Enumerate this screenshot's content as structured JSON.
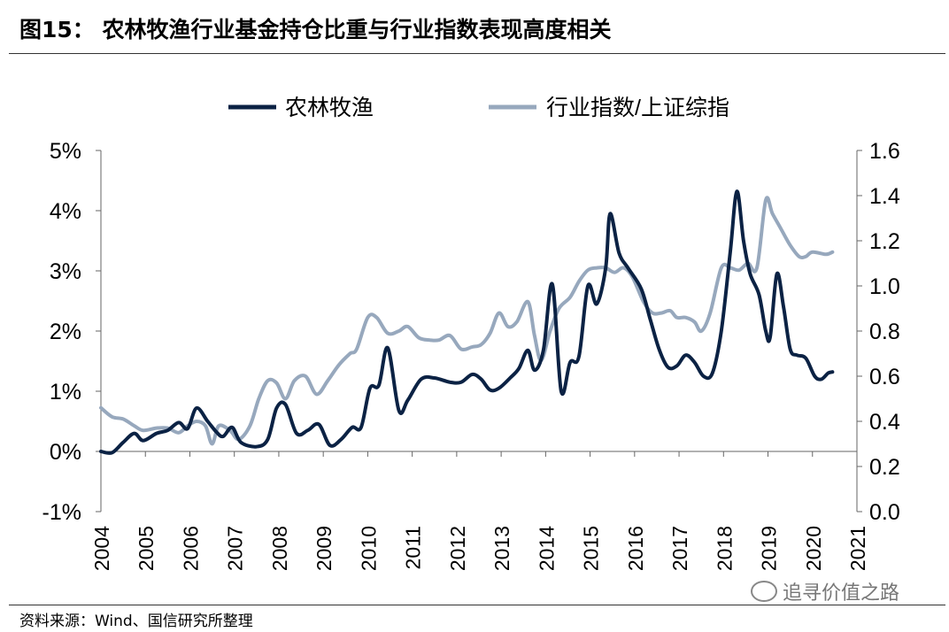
{
  "title": "图15：  农林牧渔行业基金持仓比重与行业指数表现高度相关",
  "source": "资料来源：Wind、国信研究所整理",
  "watermark": "追寻价值之路",
  "chart_data": {
    "type": "line",
    "x_ticks": [
      "2004",
      "2005",
      "2006",
      "2007",
      "2008",
      "2009",
      "2010",
      "2011",
      "2012",
      "2013",
      "2014",
      "2015",
      "2016",
      "2017",
      "2018",
      "2019",
      "2020",
      "2021"
    ],
    "y_left": {
      "min": -1,
      "max": 5,
      "ticks": [
        -1,
        0,
        1,
        2,
        3,
        4,
        5
      ],
      "labels": [
        "-1%",
        "0%",
        "1%",
        "2%",
        "3%",
        "4%",
        "5%"
      ]
    },
    "y_right": {
      "min": 0,
      "max": 1.6,
      "ticks": [
        0,
        0.2,
        0.4,
        0.6,
        0.8,
        1.0,
        1.2,
        1.4,
        1.6
      ],
      "labels": [
        "0.0",
        "0.2",
        "0.4",
        "0.6",
        "0.8",
        "1.0",
        "1.2",
        "1.4",
        "1.6"
      ]
    },
    "legend": {
      "placement": "top-center"
    },
    "series": [
      {
        "name": "农林牧渔",
        "axis": "left",
        "color": "#0b2244",
        "points": [
          [
            2004.0,
            0.0
          ],
          [
            2004.25,
            -0.02
          ],
          [
            2004.5,
            0.15
          ],
          [
            2004.75,
            0.3
          ],
          [
            2004.95,
            0.18
          ],
          [
            2005.25,
            0.3
          ],
          [
            2005.5,
            0.35
          ],
          [
            2005.75,
            0.48
          ],
          [
            2005.95,
            0.38
          ],
          [
            2006.15,
            0.72
          ],
          [
            2006.4,
            0.5
          ],
          [
            2006.6,
            0.32
          ],
          [
            2006.75,
            0.25
          ],
          [
            2006.95,
            0.4
          ],
          [
            2007.15,
            0.15
          ],
          [
            2007.5,
            0.08
          ],
          [
            2007.75,
            0.2
          ],
          [
            2007.95,
            0.72
          ],
          [
            2008.15,
            0.78
          ],
          [
            2008.4,
            0.3
          ],
          [
            2008.65,
            0.35
          ],
          [
            2008.9,
            0.45
          ],
          [
            2009.15,
            0.1
          ],
          [
            2009.4,
            0.2
          ],
          [
            2009.65,
            0.4
          ],
          [
            2009.85,
            0.4
          ],
          [
            2010.05,
            1.05
          ],
          [
            2010.25,
            1.1
          ],
          [
            2010.45,
            1.72
          ],
          [
            2010.7,
            0.68
          ],
          [
            2010.9,
            0.85
          ],
          [
            2011.2,
            1.2
          ],
          [
            2011.5,
            1.22
          ],
          [
            2011.85,
            1.15
          ],
          [
            2012.1,
            1.15
          ],
          [
            2012.35,
            1.28
          ],
          [
            2012.55,
            1.2
          ],
          [
            2012.75,
            1.02
          ],
          [
            2012.95,
            1.05
          ],
          [
            2013.2,
            1.22
          ],
          [
            2013.4,
            1.38
          ],
          [
            2013.6,
            1.68
          ],
          [
            2013.75,
            1.35
          ],
          [
            2013.95,
            1.68
          ],
          [
            2014.15,
            2.78
          ],
          [
            2014.35,
            1.0
          ],
          [
            2014.55,
            1.48
          ],
          [
            2014.75,
            1.58
          ],
          [
            2014.95,
            2.75
          ],
          [
            2015.15,
            2.45
          ],
          [
            2015.35,
            3.05
          ],
          [
            2015.45,
            3.95
          ],
          [
            2015.65,
            3.3
          ],
          [
            2015.85,
            3.05
          ],
          [
            2016.15,
            2.7
          ],
          [
            2016.35,
            2.2
          ],
          [
            2016.55,
            1.7
          ],
          [
            2016.75,
            1.4
          ],
          [
            2016.95,
            1.42
          ],
          [
            2017.15,
            1.6
          ],
          [
            2017.35,
            1.48
          ],
          [
            2017.55,
            1.25
          ],
          [
            2017.75,
            1.3
          ],
          [
            2017.95,
            2.0
          ],
          [
            2018.15,
            3.3
          ],
          [
            2018.3,
            4.32
          ],
          [
            2018.45,
            3.5
          ],
          [
            2018.6,
            2.95
          ],
          [
            2018.8,
            2.6
          ],
          [
            2018.95,
            2.0
          ],
          [
            2019.05,
            1.9
          ],
          [
            2019.2,
            2.95
          ],
          [
            2019.35,
            2.4
          ],
          [
            2019.5,
            1.7
          ],
          [
            2019.65,
            1.6
          ],
          [
            2019.85,
            1.55
          ],
          [
            2020.05,
            1.25
          ],
          [
            2020.2,
            1.2
          ],
          [
            2020.35,
            1.3
          ],
          [
            2020.45,
            1.32
          ]
        ]
      },
      {
        "name": "行业指数/上证综指",
        "axis": "right",
        "color": "#97a8bd",
        "points": [
          [
            2004.0,
            0.46
          ],
          [
            2004.25,
            0.42
          ],
          [
            2004.5,
            0.41
          ],
          [
            2004.75,
            0.38
          ],
          [
            2004.95,
            0.36
          ],
          [
            2005.25,
            0.37
          ],
          [
            2005.5,
            0.37
          ],
          [
            2005.75,
            0.35
          ],
          [
            2005.95,
            0.38
          ],
          [
            2006.15,
            0.4
          ],
          [
            2006.35,
            0.38
          ],
          [
            2006.5,
            0.3
          ],
          [
            2006.65,
            0.38
          ],
          [
            2006.9,
            0.36
          ],
          [
            2007.1,
            0.32
          ],
          [
            2007.35,
            0.38
          ],
          [
            2007.55,
            0.5
          ],
          [
            2007.75,
            0.58
          ],
          [
            2007.95,
            0.57
          ],
          [
            2008.15,
            0.5
          ],
          [
            2008.35,
            0.58
          ],
          [
            2008.6,
            0.6
          ],
          [
            2008.85,
            0.52
          ],
          [
            2009.1,
            0.58
          ],
          [
            2009.35,
            0.65
          ],
          [
            2009.6,
            0.7
          ],
          [
            2009.75,
            0.72
          ],
          [
            2010.0,
            0.86
          ],
          [
            2010.2,
            0.86
          ],
          [
            2010.45,
            0.79
          ],
          [
            2010.7,
            0.8
          ],
          [
            2010.9,
            0.82
          ],
          [
            2011.15,
            0.77
          ],
          [
            2011.4,
            0.76
          ],
          [
            2011.6,
            0.76
          ],
          [
            2011.85,
            0.78
          ],
          [
            2012.1,
            0.72
          ],
          [
            2012.35,
            0.73
          ],
          [
            2012.55,
            0.74
          ],
          [
            2012.75,
            0.79
          ],
          [
            2012.95,
            0.88
          ],
          [
            2013.15,
            0.82
          ],
          [
            2013.35,
            0.84
          ],
          [
            2013.6,
            0.93
          ],
          [
            2013.75,
            0.78
          ],
          [
            2013.9,
            0.67
          ],
          [
            2014.1,
            0.8
          ],
          [
            2014.3,
            0.9
          ],
          [
            2014.55,
            0.95
          ],
          [
            2014.75,
            1.02
          ],
          [
            2014.95,
            1.07
          ],
          [
            2015.15,
            1.08
          ],
          [
            2015.35,
            1.08
          ],
          [
            2015.55,
            1.06
          ],
          [
            2015.75,
            1.08
          ],
          [
            2015.95,
            1.04
          ],
          [
            2016.2,
            0.93
          ],
          [
            2016.4,
            0.88
          ],
          [
            2016.6,
            0.88
          ],
          [
            2016.8,
            0.89
          ],
          [
            2016.95,
            0.86
          ],
          [
            2017.15,
            0.86
          ],
          [
            2017.35,
            0.84
          ],
          [
            2017.5,
            0.8
          ],
          [
            2017.7,
            0.88
          ],
          [
            2017.95,
            1.08
          ],
          [
            2018.15,
            1.08
          ],
          [
            2018.35,
            1.07
          ],
          [
            2018.55,
            1.1
          ],
          [
            2018.75,
            1.08
          ],
          [
            2018.95,
            1.38
          ],
          [
            2019.1,
            1.32
          ],
          [
            2019.3,
            1.25
          ],
          [
            2019.5,
            1.18
          ],
          [
            2019.7,
            1.13
          ],
          [
            2019.85,
            1.13
          ],
          [
            2020.0,
            1.15
          ],
          [
            2020.3,
            1.14
          ],
          [
            2020.45,
            1.15
          ]
        ]
      }
    ]
  }
}
